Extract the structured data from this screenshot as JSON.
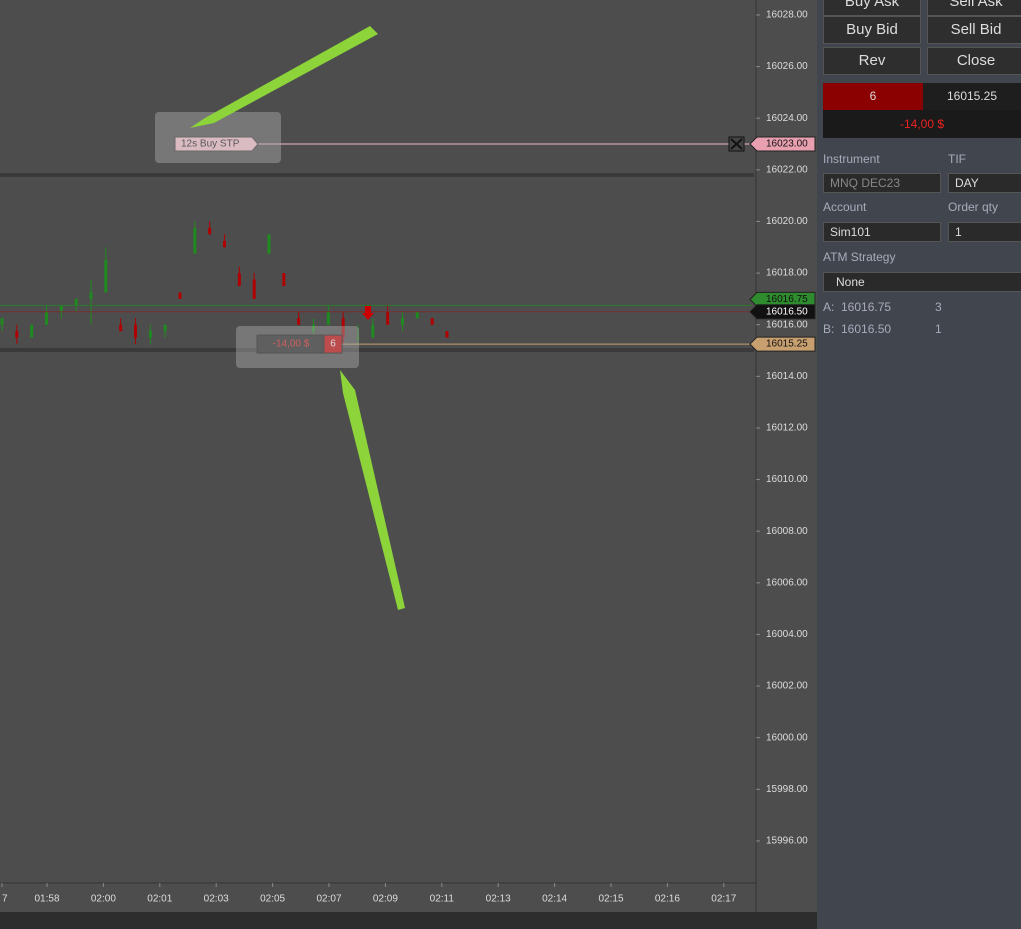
{
  "chart_panel": {
    "ylim": [
      15994.37,
      16028.58
    ],
    "yticks": [
      {
        "value": 16028,
        "label": "16028.00"
      },
      {
        "value": 16026,
        "label": "16026.00"
      },
      {
        "value": 16024,
        "label": "16024.00"
      },
      {
        "value": 16022,
        "label": "16022.00"
      },
      {
        "value": 16020,
        "label": "16020.00"
      },
      {
        "value": 16018,
        "label": "16018.00"
      },
      {
        "value": 16016,
        "label": "16016.00"
      },
      {
        "value": 16014,
        "label": "16014.00"
      },
      {
        "value": 16012,
        "label": "16012.00"
      },
      {
        "value": 16010,
        "label": "16010.00"
      },
      {
        "value": 16008,
        "label": "16008.00"
      },
      {
        "value": 16006,
        "label": "16006.00"
      },
      {
        "value": 16004,
        "label": "16004.00"
      },
      {
        "value": 16002,
        "label": "16002.00"
      },
      {
        "value": 16000,
        "label": "16000.00"
      },
      {
        "value": 15998,
        "label": "15998.00"
      },
      {
        "value": 15996,
        "label": "15996.00"
      }
    ],
    "xticks": [
      "7",
      "01:58",
      "02:00",
      "02:01",
      "02:03",
      "02:05",
      "02:07",
      "02:09",
      "02:11",
      "02:13",
      "02:14",
      "02:15",
      "02:16",
      "02:17"
    ],
    "candles": [
      [
        16016.0,
        16016.25,
        16015.75,
        16016.25
      ],
      [
        16015.75,
        16016.0,
        16015.25,
        16015.5
      ],
      [
        16015.5,
        16016.0,
        16015.5,
        16016.0
      ],
      [
        16016.0,
        16016.75,
        16016.0,
        16016.5
      ],
      [
        16016.5,
        16016.75,
        16016.25,
        16016.75
      ],
      [
        16016.75,
        16017.0,
        16016.5,
        16017.0
      ],
      [
        16017.0,
        16017.75,
        16016.0,
        16017.25
      ],
      [
        16017.25,
        16019.0,
        16017.25,
        16018.5
      ],
      [
        16016.0,
        16016.25,
        16015.75,
        16015.75
      ],
      [
        16016.0,
        16016.25,
        16015.25,
        16015.5
      ],
      [
        16015.5,
        16016.0,
        16015.25,
        16015.75
      ],
      [
        16015.75,
        16016.0,
        16015.5,
        16016.0
      ],
      [
        16017.25,
        16017.25,
        16017.0,
        16017.0
      ],
      [
        16018.75,
        16020.0,
        16018.75,
        16019.75
      ],
      [
        16019.75,
        16020.0,
        16019.5,
        16019.5
      ],
      [
        16019.25,
        16019.5,
        16019.0,
        16019.0
      ],
      [
        16018.0,
        16018.25,
        16017.5,
        16017.5
      ],
      [
        16017.75,
        16018.0,
        16017.0,
        16017.0
      ],
      [
        16018.75,
        16019.5,
        16018.75,
        16019.5
      ],
      [
        16018.0,
        16018.0,
        16017.5,
        16017.5
      ],
      [
        16016.25,
        16016.5,
        16016.0,
        16016.0
      ],
      [
        16015.75,
        16016.25,
        16015.25,
        16016.0
      ],
      [
        16016.0,
        16016.75,
        16016.0,
        16016.5
      ],
      [
        16016.25,
        16016.5,
        16015.25,
        16015.5
      ],
      [
        16015.5,
        16016.0,
        16015.25,
        16015.5
      ],
      [
        16015.5,
        16016.25,
        16015.5,
        16016.0
      ],
      [
        16016.5,
        16016.75,
        16016.0,
        16016.0
      ],
      [
        16016.0,
        16016.5,
        16015.75,
        16016.25
      ],
      [
        16016.25,
        16016.5,
        16016.25,
        16016.5
      ],
      [
        16016.25,
        16016.25,
        16016.0,
        16016.0
      ],
      [
        16015.75,
        16015.75,
        16015.5,
        16015.5
      ]
    ],
    "order": {
      "label": "12s  Buy STP",
      "price": 16023,
      "price_label": "16023.00"
    },
    "position": {
      "pnl": "-14,00 $",
      "qty": "6",
      "price": 16015.25,
      "price_label": "16015.25"
    },
    "ask": {
      "price": 16016.75,
      "label": "16016.75"
    },
    "bid": {
      "price": 16016.5,
      "label": "16016.50"
    }
  },
  "order_panel": {
    "buttons": [
      "Buy Ask",
      "Sell Ask",
      "Buy Bid",
      "Sell Bid",
      "Rev",
      "Close"
    ],
    "position_qty": "6",
    "position_price": "16015.25",
    "position_pnl": "-14,00 $",
    "instrument_label": "Instrument",
    "instrument": "MNQ DEC23",
    "tif_label": "TIF",
    "tif": "DAY",
    "account_label": "Account",
    "account": "Sim101",
    "qty_label": "Order qty",
    "qty": "1",
    "atm_label": "ATM Strategy",
    "atm": "None",
    "ask_label": "A:",
    "ask_price": "16016.75",
    "ask_size": "3",
    "bid_label": "B:",
    "bid_price": "16016.50",
    "bid_size": "1"
  }
}
